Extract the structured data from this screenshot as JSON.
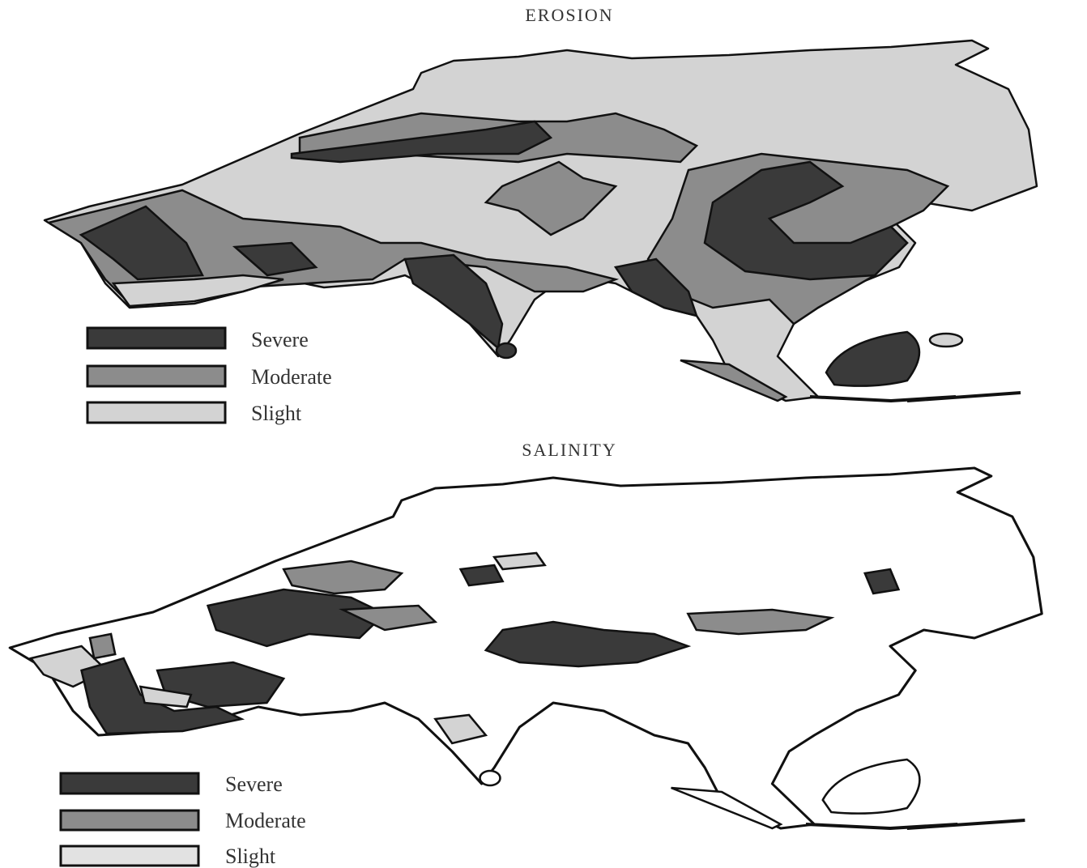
{
  "maps": [
    {
      "title": "EROSION",
      "legend": [
        {
          "label": "Severe"
        },
        {
          "label": "Moderate"
        },
        {
          "label": "Slight"
        }
      ]
    },
    {
      "title": "SALINITY",
      "legend": [
        {
          "label": "Severe"
        },
        {
          "label": "Moderate"
        },
        {
          "label": "Slight"
        }
      ]
    }
  ]
}
